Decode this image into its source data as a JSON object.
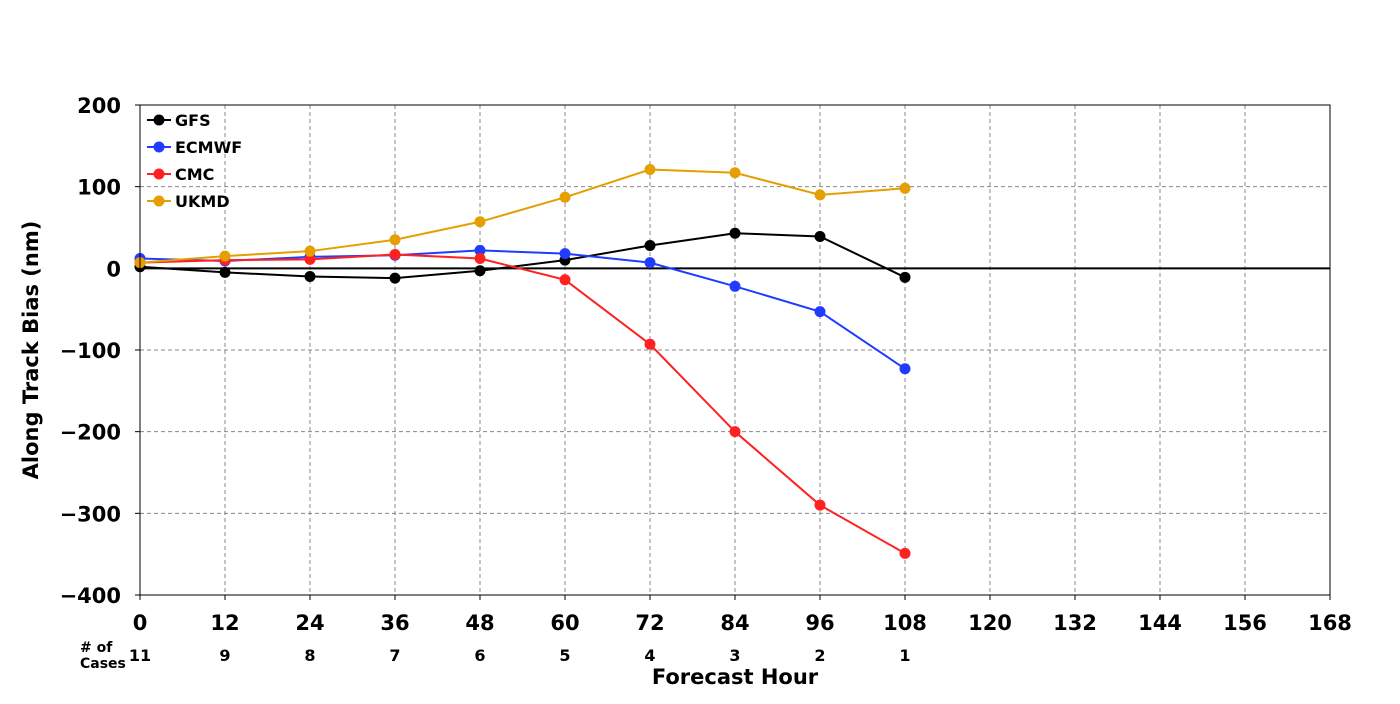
{
  "chart_data": {
    "type": "line",
    "title": "",
    "xlabel": "Forecast Hour",
    "ylabel": "Along Track Bias (nm)",
    "xlim": [
      0,
      168
    ],
    "ylim": [
      -400,
      200
    ],
    "x_ticks": [
      0,
      12,
      24,
      36,
      48,
      60,
      72,
      84,
      96,
      108,
      120,
      132,
      144,
      156,
      168
    ],
    "y_ticks": [
      200,
      100,
      0,
      -100,
      -200,
      -300,
      -400
    ],
    "y_tick_labels": [
      "200",
      "100",
      "0",
      "−100",
      "−200",
      "−300",
      "−400"
    ],
    "grid": true,
    "zero_line": true,
    "legend_position": "top-left",
    "cases_label": "# of\nCases",
    "cases_x": [
      0,
      12,
      24,
      36,
      48,
      60,
      72,
      84,
      96,
      108
    ],
    "cases": [
      "11",
      "9",
      "8",
      "7",
      "6",
      "5",
      "4",
      "3",
      "2",
      "1"
    ],
    "x": [
      0,
      12,
      24,
      36,
      48,
      60,
      72,
      84,
      96,
      108
    ],
    "series": [
      {
        "name": "GFS",
        "color": "#000000",
        "values": [
          2,
          -5,
          -10,
          -12,
          -3,
          10,
          28,
          43,
          39,
          -11
        ]
      },
      {
        "name": "ECMWF",
        "color": "#1f3cff",
        "values": [
          12,
          9,
          14,
          16,
          22,
          18,
          7,
          -22,
          -53,
          -123
        ]
      },
      {
        "name": "CMC",
        "color": "#ff2020",
        "values": [
          7,
          10,
          11,
          17,
          12,
          -14,
          -93,
          -200,
          -290,
          -349
        ]
      },
      {
        "name": "UKMD",
        "color": "#e69f00",
        "values": [
          7,
          15,
          21,
          35,
          57,
          87,
          121,
          117,
          90,
          98
        ]
      }
    ]
  }
}
